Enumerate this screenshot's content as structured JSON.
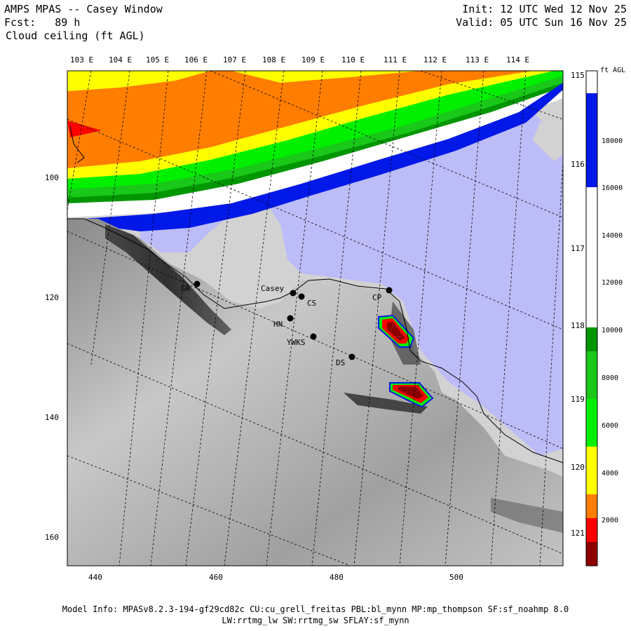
{
  "header": {
    "model": "AMPS MPAS -- Casey Window",
    "forecast": "Fcst:   89 h",
    "field": "Cloud ceiling (ft AGL)",
    "init": "Init: 12 UTC Wed 12 Nov 25",
    "valid": "Valid: 05 UTC Sun 16 Nov 25"
  },
  "map": {
    "top_lon_labels": [
      "103 E",
      "104 E",
      "105 E",
      "106 E",
      "107 E",
      "108 E",
      "109 E",
      "110 E",
      "111 E",
      "112 E",
      "113 E",
      "114 E"
    ],
    "right_lat_labels": [
      "115 E",
      "116 E",
      "117 E",
      "118 E",
      "119 E",
      "120 E",
      "121 E"
    ],
    "x_grid_labels": [
      "440",
      "460",
      "480",
      "500"
    ],
    "y_grid_labels": [
      "100",
      "120",
      "140",
      "160"
    ],
    "stations": [
      {
        "name": "SR"
      },
      {
        "name": "Casey"
      },
      {
        "name": "CS"
      },
      {
        "name": "CP"
      },
      {
        "name": "HN"
      },
      {
        "name": "YWKS"
      },
      {
        "name": "DS"
      }
    ]
  },
  "colorbar": {
    "unit": "ft AGL",
    "labels": [
      "18000",
      "16000",
      "14000",
      "12000",
      "10000",
      "8000",
      "6000",
      "4000",
      "2000"
    ],
    "colors": {
      "blue": "#0018e8",
      "white": "#ffffff",
      "dark_green": "#009600",
      "green": "#19c819",
      "bright_green": "#00f000",
      "yellow": "#ffff00",
      "orange": "#ff7d00",
      "red": "#ff0000",
      "dark_red": "#8c0000",
      "lavender": "#bcbcf8",
      "light_grey": "#d2d2d2"
    }
  },
  "footer": {
    "line1": "Model Info: MPASv8.2.3-194-gf29cd82c CU:cu_grell_freitas PBL:bl_mynn MP:mp_thompson SF:sf_noahmp 8.0",
    "line2": "LW:rrtmg_lw SW:rrtmg_sw SFLAY:sf_mynn"
  }
}
